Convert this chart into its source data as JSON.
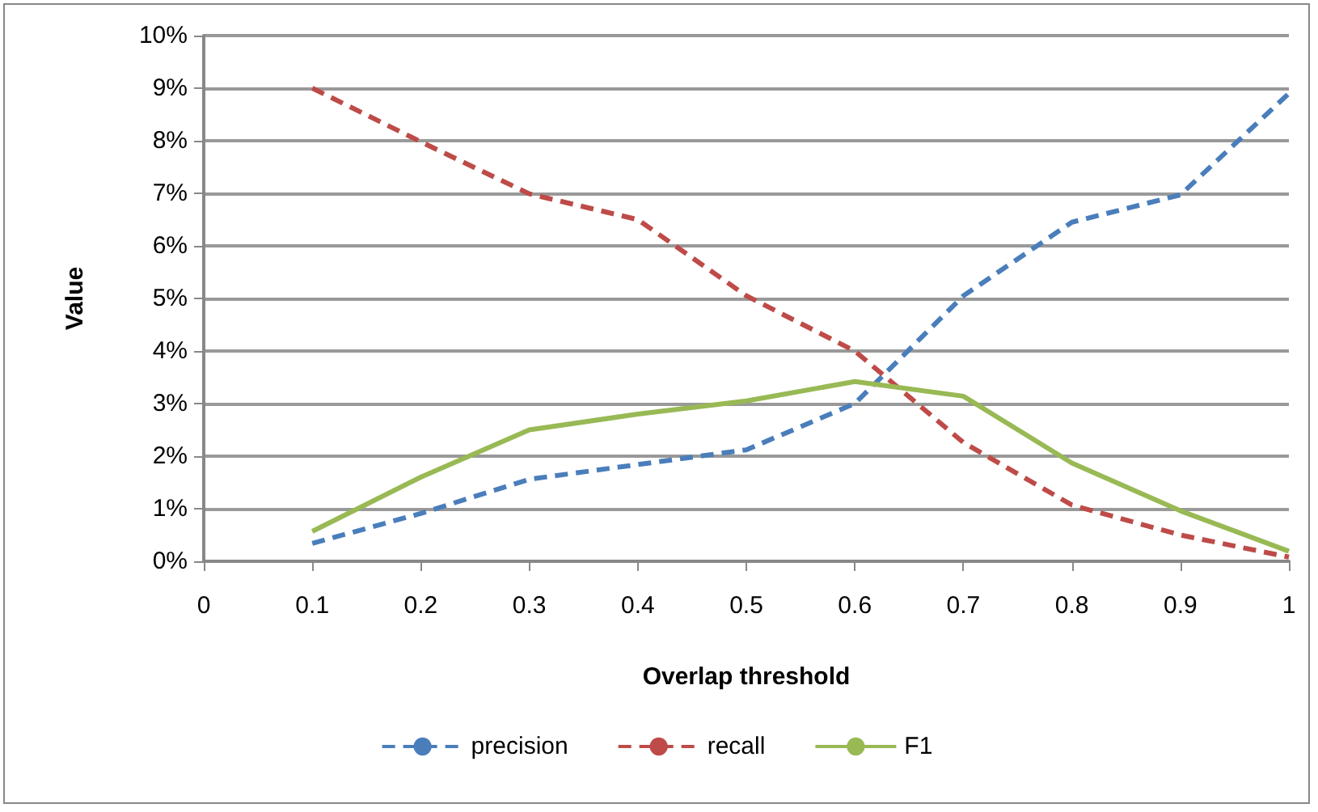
{
  "chart_data": {
    "type": "line",
    "xlabel": "Overlap threshold",
    "ylabel": "Value",
    "x": [
      0.1,
      0.2,
      0.3,
      0.4,
      0.5,
      0.6,
      0.7,
      0.8,
      0.9,
      1
    ],
    "xlim": [
      0,
      1
    ],
    "xticks": [
      0,
      0.1,
      0.2,
      0.3,
      0.4,
      0.5,
      0.6,
      0.7,
      0.8,
      0.9,
      1
    ],
    "ylim": [
      0,
      10
    ],
    "yticks": [
      {
        "value": 0,
        "label": "0%"
      },
      {
        "value": 1,
        "label": "1%"
      },
      {
        "value": 2,
        "label": "2%"
      },
      {
        "value": 3,
        "label": "3%"
      },
      {
        "value": 4,
        "label": "4%"
      },
      {
        "value": 5,
        "label": "5%"
      },
      {
        "value": 6,
        "label": "6%"
      },
      {
        "value": 7,
        "label": "7%"
      },
      {
        "value": 8,
        "label": "8%"
      },
      {
        "value": 9,
        "label": "9%"
      },
      {
        "value": 10,
        "label": "10%"
      }
    ],
    "grid": "y",
    "legend": "bottom",
    "marker": "none",
    "series": [
      {
        "name": "precision",
        "color": "#4a7ebb",
        "line_style": "dashed",
        "values": [
          0.34,
          0.91,
          1.56,
          1.84,
          2.12,
          3.0,
          5.05,
          6.45,
          6.97,
          8.9
        ]
      },
      {
        "name": "recall",
        "color": "#be4b48",
        "line_style": "dashed",
        "values": [
          9.0,
          7.98,
          6.99,
          6.5,
          5.05,
          4.0,
          2.26,
          1.07,
          0.5,
          0.08
        ]
      },
      {
        "name": "F1",
        "color": "#98b954",
        "line_style": "solid",
        "values": [
          0.57,
          1.6,
          2.5,
          2.8,
          3.05,
          3.42,
          3.14,
          1.87,
          0.96,
          0.19
        ]
      }
    ]
  }
}
